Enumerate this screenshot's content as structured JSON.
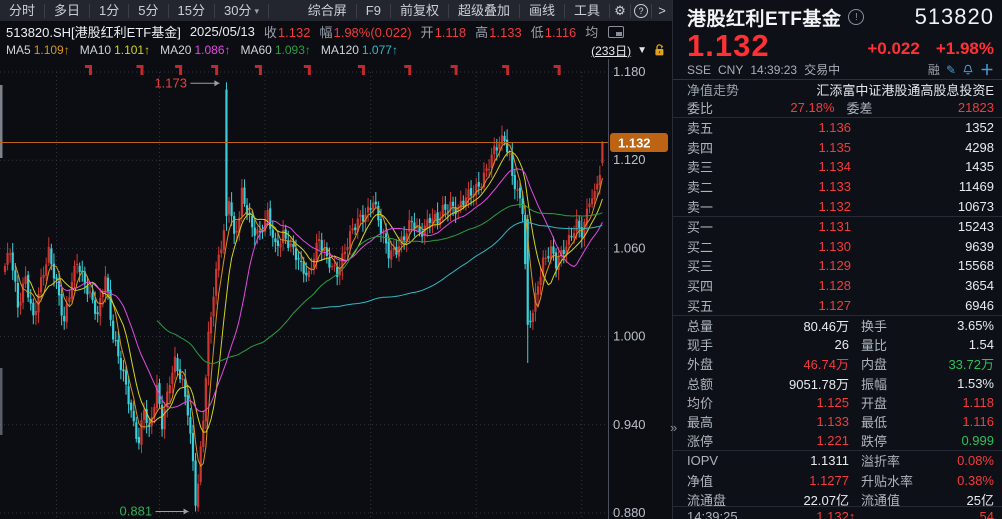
{
  "menu": {
    "left": [
      {
        "label": "分时"
      },
      {
        "label": "多日"
      },
      {
        "label": "1分"
      },
      {
        "label": "5分"
      },
      {
        "label": "15分"
      },
      {
        "label": "30分",
        "caret": "▾"
      }
    ],
    "right": [
      "综合屏",
      "F9",
      "前复权",
      "超级叠加",
      "画线",
      "工具"
    ],
    "gear_icon": "⚙",
    "help_icon": "?",
    "more_icon": ">"
  },
  "info_row": {
    "symbol": "513820.SH[港股红利ETF基金]",
    "date": "2025/05/13",
    "fields": [
      {
        "label": "收",
        "value": "1.132"
      },
      {
        "label": "幅",
        "value": "1.98%(0.022)"
      },
      {
        "label": "开",
        "value": "1.118"
      },
      {
        "label": "高",
        "value": "1.133"
      },
      {
        "label": "低",
        "value": "1.116"
      },
      {
        "label": "均",
        "value": ""
      }
    ]
  },
  "ma_row": {
    "items": [
      {
        "label": "MA5",
        "value": "1.109↑",
        "color": "#d79420"
      },
      {
        "label": "MA10",
        "value": "1.101↑",
        "color": "#d3d31f"
      },
      {
        "label": "MA20",
        "value": "1.086↑",
        "color": "#e04ae0"
      },
      {
        "label": "MA60",
        "value": "1.093↑",
        "color": "#2a9d44"
      },
      {
        "label": "MA120",
        "value": "1.077↑",
        "color": "#31b9c5"
      }
    ],
    "period": "(233日)",
    "caret": "▼"
  },
  "chart": {
    "days": 233,
    "y_range": [
      0.88,
      1.18
    ],
    "y_ticks": [
      "1.180",
      "1.120",
      "1.060",
      "1.000",
      "0.940",
      "0.880"
    ],
    "price_tag": "1.132",
    "price_line_value": 1.132,
    "high_label": {
      "text": "1.173",
      "day": 86,
      "value": 1.173
    },
    "low_label": {
      "text": "0.881",
      "day": 74,
      "value": 0.881
    },
    "vgrid_days": [
      20,
      60,
      101,
      142,
      183,
      224
    ],
    "flag_days": [
      33,
      53,
      68,
      82,
      99,
      118,
      139,
      157,
      175,
      195,
      215
    ],
    "close_anchors": [
      [
        0,
        1.048
      ],
      [
        2,
        1.057
      ],
      [
        5,
        1.02
      ],
      [
        8,
        1.042
      ],
      [
        11,
        1.012
      ],
      [
        14,
        1.035
      ],
      [
        17,
        1.058
      ],
      [
        20,
        1.038
      ],
      [
        23,
        1.008
      ],
      [
        25,
        1.028
      ],
      [
        28,
        1.052
      ],
      [
        31,
        1.038
      ],
      [
        33,
        1.028
      ],
      [
        36,
        1.012
      ],
      [
        39,
        1.042
      ],
      [
        42,
        1.002
      ],
      [
        46,
        0.972
      ],
      [
        50,
        0.94
      ],
      [
        52,
        0.93
      ],
      [
        54,
        0.953
      ],
      [
        56,
        0.934
      ],
      [
        59,
        0.963
      ],
      [
        61,
        0.941
      ],
      [
        64,
        0.972
      ],
      [
        66,
        0.983
      ],
      [
        69,
        0.966
      ],
      [
        71,
        0.949
      ],
      [
        73,
        0.915
      ],
      [
        74,
        0.888
      ],
      [
        75,
        0.901
      ],
      [
        77,
        0.946
      ],
      [
        79,
        0.998
      ],
      [
        81,
        1.028
      ],
      [
        83,
        1.056
      ],
      [
        85,
        1.072
      ],
      [
        86,
        1.082
      ],
      [
        87,
        1.097
      ],
      [
        89,
        1.066
      ],
      [
        91,
        1.08
      ],
      [
        92,
        1.096
      ],
      [
        94,
        1.086
      ],
      [
        96,
        1.076
      ],
      [
        99,
        1.07
      ],
      [
        102,
        1.081
      ],
      [
        105,
        1.061
      ],
      [
        108,
        1.071
      ],
      [
        112,
        1.057
      ],
      [
        115,
        1.047
      ],
      [
        118,
        1.043
      ],
      [
        120,
        1.057
      ],
      [
        122,
        1.065
      ],
      [
        125,
        1.051
      ],
      [
        129,
        1.045
      ],
      [
        132,
        1.059
      ],
      [
        135,
        1.071
      ],
      [
        138,
        1.081
      ],
      [
        141,
        1.087
      ],
      [
        143,
        1.093
      ],
      [
        146,
        1.071
      ],
      [
        149,
        1.057
      ],
      [
        152,
        1.061
      ],
      [
        155,
        1.067
      ],
      [
        158,
        1.077
      ],
      [
        161,
        1.071
      ],
      [
        165,
        1.081
      ],
      [
        168,
        1.077
      ],
      [
        170,
        1.085
      ],
      [
        173,
        1.091
      ],
      [
        176,
        1.087
      ],
      [
        179,
        1.093
      ],
      [
        182,
        1.099
      ],
      [
        185,
        1.107
      ],
      [
        188,
        1.117
      ],
      [
        190,
        1.125
      ],
      [
        192,
        1.131
      ],
      [
        194,
        1.136
      ],
      [
        196,
        1.123
      ],
      [
        197,
        1.111
      ],
      [
        199,
        1.097
      ],
      [
        201,
        1.085
      ],
      [
        203,
        1.008
      ],
      [
        205,
        1.018
      ],
      [
        207,
        1.038
      ],
      [
        209,
        1.051
      ],
      [
        212,
        1.057
      ],
      [
        214,
        1.049
      ],
      [
        217,
        1.061
      ],
      [
        219,
        1.067
      ],
      [
        222,
        1.075
      ],
      [
        224,
        1.069
      ],
      [
        226,
        1.087
      ],
      [
        228,
        1.094
      ],
      [
        229,
        1.099
      ],
      [
        230,
        1.104
      ],
      [
        231,
        1.11
      ],
      [
        232,
        1.132
      ]
    ],
    "overrides": {
      "74": {
        "l": 0.881
      },
      "86": {
        "o": 1.168,
        "h": 1.173,
        "l": 1.072,
        "c": 1.082
      },
      "203": {
        "o": 1.08,
        "h": 1.083,
        "l": 0.982,
        "c": 1.008
      },
      "232": {
        "o": 1.118,
        "h": 1.133,
        "l": 1.116,
        "c": 1.132
      }
    },
    "ma": [
      {
        "n": 5,
        "color": "#d79420"
      },
      {
        "n": 10,
        "color": "#d3d31f"
      },
      {
        "n": 20,
        "color": "#e04ae0"
      },
      {
        "n": 60,
        "color": "#2a9d44"
      },
      {
        "n": 120,
        "color": "#31b9c5"
      }
    ],
    "colors": {
      "up": "#ce3731",
      "down": "#3bd0d9",
      "grid": "#31363f",
      "axis_line": "#4a505c",
      "axis_text": "#b9bfc9",
      "flag": "#c2292c",
      "price_line": "#bd6414",
      "tag_bg": "#bd6414",
      "high_text": "#e8413f",
      "low_text": "#2fae57",
      "arrow": "#9aa0a8"
    }
  },
  "panel": {
    "header": {
      "name": "港股红利ETF基金",
      "info_icon": "!",
      "code": "513820",
      "price": "1.132",
      "change": "+0.022",
      "change_pct": "+1.98%",
      "exchange": "SSE",
      "currency": "CNY",
      "time": "14:39:23",
      "status": "交易中",
      "margin_badge": "融"
    },
    "nav_row": {
      "label": "净值走势",
      "value": "汇添富中证港股通高股息投资E"
    },
    "ratio_row": {
      "label": "委比",
      "value": "27.18%",
      "label2": "委差",
      "value2": "21823"
    },
    "asks": [
      {
        "name": "卖五",
        "price": "1.136",
        "vol": "1352"
      },
      {
        "name": "卖四",
        "price": "1.135",
        "vol": "4298"
      },
      {
        "name": "卖三",
        "price": "1.134",
        "vol": "1435"
      },
      {
        "name": "卖二",
        "price": "1.133",
        "vol": "11469"
      },
      {
        "name": "卖一",
        "price": "1.132",
        "vol": "10673"
      }
    ],
    "bids": [
      {
        "name": "买一",
        "price": "1.131",
        "vol": "15243"
      },
      {
        "name": "买二",
        "price": "1.130",
        "vol": "9639"
      },
      {
        "name": "买三",
        "price": "1.129",
        "vol": "15568"
      },
      {
        "name": "买四",
        "price": "1.128",
        "vol": "3654"
      },
      {
        "name": "买五",
        "price": "1.127",
        "vol": "6946"
      }
    ],
    "stats": [
      {
        "l": "总量",
        "lv": "80.46万",
        "lc": "w",
        "r": "换手",
        "rv": "3.65%",
        "rc": "w"
      },
      {
        "l": "现手",
        "lv": "26",
        "lc": "w",
        "r": "量比",
        "rv": "1.54",
        "rc": "w"
      },
      {
        "l": "外盘",
        "lv": "46.74万",
        "lc": "r",
        "r": "内盘",
        "rv": "33.72万",
        "rc": "g"
      },
      {
        "l": "总额",
        "lv": "9051.78万",
        "lc": "w",
        "r": "振幅",
        "rv": "1.53%",
        "rc": "w"
      },
      {
        "l": "均价",
        "lv": "1.125",
        "lc": "r",
        "r": "开盘",
        "rv": "1.118",
        "rc": "r"
      },
      {
        "l": "最高",
        "lv": "1.133",
        "lc": "r",
        "r": "最低",
        "rv": "1.116",
        "rc": "r"
      },
      {
        "l": "涨停",
        "lv": "1.221",
        "lc": "r",
        "r": "跌停",
        "rv": "0.999",
        "rc": "g"
      },
      {
        "l": "IOPV",
        "lv": "1.1311",
        "lc": "w",
        "r": "溢折率",
        "rv": "0.08%",
        "rc": "r"
      },
      {
        "l": "净值",
        "lv": "1.1277",
        "lc": "r",
        "r": "升贴水率",
        "rv": "0.38%",
        "rc": "r"
      },
      {
        "l": "流通盘",
        "lv": "22.07亿",
        "lc": "w",
        "r": "流通值",
        "rv": "25亿",
        "rc": "w"
      }
    ],
    "bottom_tick": {
      "time": "14:39:25",
      "price": "1.132↑",
      "volume": "54"
    },
    "expander": "»"
  }
}
